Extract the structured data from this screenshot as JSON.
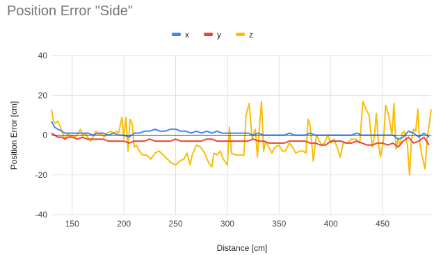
{
  "chart_data": {
    "type": "line",
    "title": "Position Error \"Side\"",
    "xlabel": "Distance [cm]",
    "ylabel": "Position Error [cm]",
    "xlim": [
      130,
      497
    ],
    "ylim": [
      -40,
      40
    ],
    "xticks": [
      150,
      200,
      250,
      300,
      350,
      400,
      450
    ],
    "yticks": [
      -40,
      -20,
      0,
      20,
      40
    ],
    "grid": true,
    "legend_position": "top",
    "series": [
      {
        "name": "x",
        "color": "#4285F4",
        "points": [
          [
            130,
            7
          ],
          [
            133,
            4
          ],
          [
            136,
            3
          ],
          [
            140,
            2
          ],
          [
            143,
            1
          ],
          [
            146,
            1
          ],
          [
            150,
            1
          ],
          [
            155,
            1
          ],
          [
            160,
            1
          ],
          [
            165,
            1
          ],
          [
            170,
            0
          ],
          [
            175,
            1
          ],
          [
            180,
            1
          ],
          [
            185,
            0
          ],
          [
            190,
            1
          ],
          [
            195,
            0
          ],
          [
            200,
            0
          ],
          [
            205,
            -1
          ],
          [
            210,
            1
          ],
          [
            215,
            1
          ],
          [
            220,
            2
          ],
          [
            225,
            2
          ],
          [
            230,
            3
          ],
          [
            235,
            2
          ],
          [
            240,
            2
          ],
          [
            245,
            3
          ],
          [
            250,
            3
          ],
          [
            255,
            2
          ],
          [
            260,
            2
          ],
          [
            265,
            1
          ],
          [
            270,
            2
          ],
          [
            275,
            1
          ],
          [
            280,
            2
          ],
          [
            285,
            1
          ],
          [
            290,
            2
          ],
          [
            295,
            1
          ],
          [
            300,
            1
          ],
          [
            305,
            1
          ],
          [
            310,
            1
          ],
          [
            315,
            1
          ],
          [
            320,
            1
          ],
          [
            325,
            0
          ],
          [
            330,
            1
          ],
          [
            335,
            0
          ],
          [
            340,
            0
          ],
          [
            345,
            0
          ],
          [
            350,
            0
          ],
          [
            355,
            0
          ],
          [
            360,
            1
          ],
          [
            365,
            0
          ],
          [
            370,
            0
          ],
          [
            375,
            0
          ],
          [
            380,
            1
          ],
          [
            385,
            0
          ],
          [
            390,
            0
          ],
          [
            395,
            0
          ],
          [
            400,
            0
          ],
          [
            405,
            0
          ],
          [
            410,
            0
          ],
          [
            415,
            0
          ],
          [
            420,
            0
          ],
          [
            425,
            1
          ],
          [
            430,
            0
          ],
          [
            435,
            0
          ],
          [
            440,
            0
          ],
          [
            445,
            0
          ],
          [
            450,
            0
          ],
          [
            455,
            0
          ],
          [
            460,
            0
          ],
          [
            465,
            -2
          ],
          [
            470,
            -1
          ],
          [
            475,
            2
          ],
          [
            480,
            1
          ],
          [
            485,
            -1
          ],
          [
            490,
            1
          ],
          [
            495,
            -1
          ]
        ]
      },
      {
        "name": "y",
        "color": "#EA4335",
        "points": [
          [
            130,
            1
          ],
          [
            133,
            0
          ],
          [
            136,
            -1
          ],
          [
            140,
            -1
          ],
          [
            143,
            -2
          ],
          [
            146,
            -1
          ],
          [
            150,
            -1
          ],
          [
            155,
            -2
          ],
          [
            160,
            -1
          ],
          [
            165,
            -2
          ],
          [
            170,
            -2
          ],
          [
            175,
            -2
          ],
          [
            180,
            -2
          ],
          [
            185,
            -3
          ],
          [
            190,
            -3
          ],
          [
            195,
            -3
          ],
          [
            200,
            -3
          ],
          [
            205,
            -4
          ],
          [
            210,
            -3
          ],
          [
            215,
            -3
          ],
          [
            220,
            -3
          ],
          [
            225,
            -2
          ],
          [
            230,
            -3
          ],
          [
            235,
            -3
          ],
          [
            240,
            -3
          ],
          [
            245,
            -3
          ],
          [
            250,
            -2
          ],
          [
            255,
            -3
          ],
          [
            260,
            -3
          ],
          [
            265,
            -3
          ],
          [
            270,
            -3
          ],
          [
            275,
            -3
          ],
          [
            280,
            -2
          ],
          [
            285,
            -2
          ],
          [
            290,
            -3
          ],
          [
            295,
            -3
          ],
          [
            300,
            -3
          ],
          [
            305,
            -3
          ],
          [
            310,
            -3
          ],
          [
            315,
            -3
          ],
          [
            320,
            -3
          ],
          [
            325,
            -2
          ],
          [
            330,
            -3
          ],
          [
            335,
            -3
          ],
          [
            340,
            -4
          ],
          [
            345,
            -4
          ],
          [
            350,
            -4
          ],
          [
            355,
            -4
          ],
          [
            360,
            -3
          ],
          [
            365,
            -3
          ],
          [
            370,
            -3
          ],
          [
            375,
            -3
          ],
          [
            380,
            -4
          ],
          [
            385,
            -4
          ],
          [
            390,
            -5
          ],
          [
            395,
            -5
          ],
          [
            400,
            -3
          ],
          [
            405,
            -3
          ],
          [
            410,
            -3
          ],
          [
            415,
            -4
          ],
          [
            420,
            -4
          ],
          [
            425,
            -3
          ],
          [
            430,
            -4
          ],
          [
            435,
            -5
          ],
          [
            440,
            -5
          ],
          [
            445,
            -4
          ],
          [
            450,
            -4
          ],
          [
            455,
            -5
          ],
          [
            460,
            -4
          ],
          [
            465,
            -6
          ],
          [
            470,
            -3
          ],
          [
            475,
            -1
          ],
          [
            480,
            -4
          ],
          [
            485,
            -3
          ],
          [
            490,
            -1
          ],
          [
            495,
            -5
          ]
        ]
      },
      {
        "name": "z",
        "color": "#FBBC04",
        "points": [
          [
            130,
            13
          ],
          [
            132,
            7
          ],
          [
            134,
            6
          ],
          [
            136,
            7
          ],
          [
            138,
            5
          ],
          [
            140,
            2
          ],
          [
            143,
            -2
          ],
          [
            146,
            1
          ],
          [
            148,
            -1
          ],
          [
            150,
            0
          ],
          [
            153,
            -1
          ],
          [
            156,
            1
          ],
          [
            158,
            3
          ],
          [
            160,
            0
          ],
          [
            163,
            1
          ],
          [
            166,
            -2
          ],
          [
            168,
            -3
          ],
          [
            170,
            -1
          ],
          [
            173,
            2
          ],
          [
            176,
            0
          ],
          [
            178,
            1
          ],
          [
            181,
            -1
          ],
          [
            184,
            1
          ],
          [
            187,
            2
          ],
          [
            190,
            1
          ],
          [
            193,
            2
          ],
          [
            195,
            1
          ],
          [
            198,
            9
          ],
          [
            200,
            -2
          ],
          [
            202,
            9
          ],
          [
            204,
            -8
          ],
          [
            206,
            8
          ],
          [
            208,
            6
          ],
          [
            210,
            -6
          ],
          [
            212,
            -5
          ],
          [
            215,
            -8
          ],
          [
            218,
            -10
          ],
          [
            222,
            -10
          ],
          [
            226,
            -12
          ],
          [
            230,
            -9
          ],
          [
            234,
            -8
          ],
          [
            238,
            -10
          ],
          [
            242,
            -12
          ],
          [
            246,
            -14
          ],
          [
            250,
            -15
          ],
          [
            254,
            -13
          ],
          [
            258,
            -12
          ],
          [
            261,
            -9
          ],
          [
            264,
            -15
          ],
          [
            266,
            -10
          ],
          [
            270,
            -5
          ],
          [
            274,
            -6
          ],
          [
            278,
            -9
          ],
          [
            282,
            -14
          ],
          [
            285,
            -16
          ],
          [
            287,
            -9
          ],
          [
            290,
            -10
          ],
          [
            293,
            -8
          ],
          [
            296,
            -12
          ],
          [
            300,
            -15
          ],
          [
            302,
            4
          ],
          [
            304,
            -9
          ],
          [
            308,
            -10
          ],
          [
            312,
            -10
          ],
          [
            316,
            -10
          ],
          [
            318,
            10
          ],
          [
            321,
            16
          ],
          [
            324,
            -2
          ],
          [
            327,
            3
          ],
          [
            329,
            -11
          ],
          [
            331,
            4
          ],
          [
            333,
            17
          ],
          [
            335,
            -8
          ],
          [
            337,
            -3
          ],
          [
            340,
            -6
          ],
          [
            343,
            -9
          ],
          [
            346,
            -6
          ],
          [
            350,
            -5
          ],
          [
            353,
            -8
          ],
          [
            356,
            -8
          ],
          [
            360,
            -4
          ],
          [
            363,
            -6
          ],
          [
            366,
            -9
          ],
          [
            370,
            -8
          ],
          [
            373,
            -8
          ],
          [
            376,
            -9
          ],
          [
            378,
            8
          ],
          [
            380,
            5
          ],
          [
            383,
            -13
          ],
          [
            386,
            0
          ],
          [
            388,
            -2
          ],
          [
            391,
            -5
          ],
          [
            394,
            -4
          ],
          [
            397,
            0
          ],
          [
            400,
            -4
          ],
          [
            403,
            -2
          ],
          [
            406,
            -6
          ],
          [
            409,
            -11
          ],
          [
            412,
            -4
          ],
          [
            416,
            -4
          ],
          [
            420,
            -2
          ],
          [
            424,
            -2
          ],
          [
            428,
            -4
          ],
          [
            431,
            17
          ],
          [
            434,
            13
          ],
          [
            437,
            10
          ],
          [
            440,
            -6
          ],
          [
            442,
            -1
          ],
          [
            444,
            11
          ],
          [
            446,
            -4
          ],
          [
            448,
            -11
          ],
          [
            451,
            -2
          ],
          [
            453,
            15
          ],
          [
            456,
            10
          ],
          [
            459,
            0
          ],
          [
            461,
            16
          ],
          [
            463,
            -7
          ],
          [
            465,
            -2
          ],
          [
            467,
            -5
          ],
          [
            469,
            1
          ],
          [
            471,
            2
          ],
          [
            474,
            -5
          ],
          [
            476,
            -20
          ],
          [
            478,
            -2
          ],
          [
            480,
            3
          ],
          [
            482,
            2
          ],
          [
            484,
            13
          ],
          [
            486,
            -4
          ],
          [
            488,
            -10
          ],
          [
            491,
            -17
          ],
          [
            493,
            -2
          ],
          [
            495,
            5
          ],
          [
            497,
            13
          ]
        ]
      }
    ]
  }
}
